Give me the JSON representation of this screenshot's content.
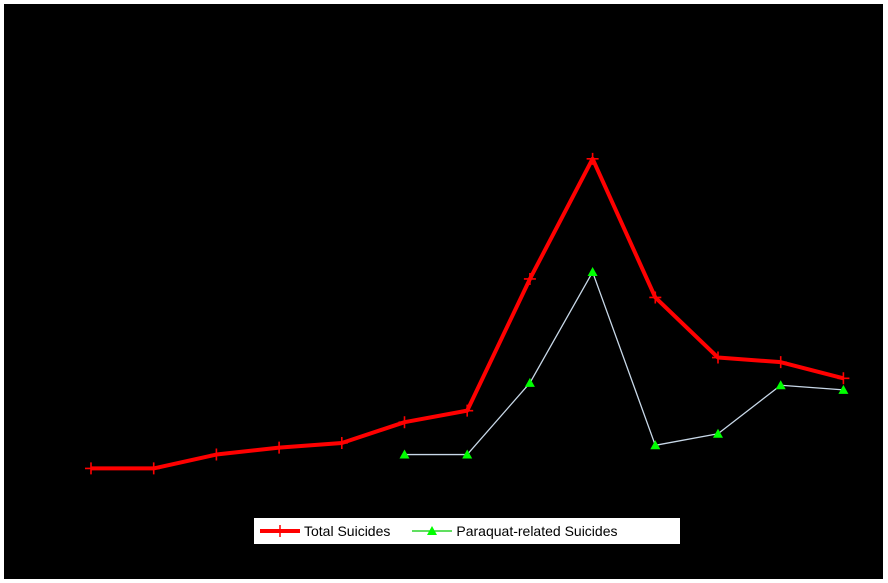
{
  "chart_data": {
    "type": "line",
    "title": "",
    "xlabel": "",
    "ylabel": "",
    "x": [
      1,
      2,
      3,
      4,
      5,
      6,
      7,
      8,
      9,
      10,
      11,
      12,
      13
    ],
    "ylim": [
      0,
      100
    ],
    "grid": false,
    "legend_position": "bottom-center",
    "series": [
      {
        "name": "Total Suicides",
        "color": "#ff0000",
        "marker": "plus",
        "values": [
          5,
          5,
          8,
          9.5,
          10.5,
          15,
          17.5,
          46,
          72,
          42,
          29,
          28,
          24.5
        ]
      },
      {
        "name": "Paraquat-related Suicides",
        "color": "#c8d8e8",
        "marker_color": "#00ff00",
        "marker": "triangle",
        "values": [
          null,
          null,
          null,
          null,
          null,
          8,
          8,
          23.5,
          47.5,
          10,
          12.5,
          23,
          22
        ]
      }
    ]
  },
  "legend": {
    "items": [
      {
        "label": "Total Suicides"
      },
      {
        "label": "Paraquat-related Suicides"
      }
    ]
  }
}
